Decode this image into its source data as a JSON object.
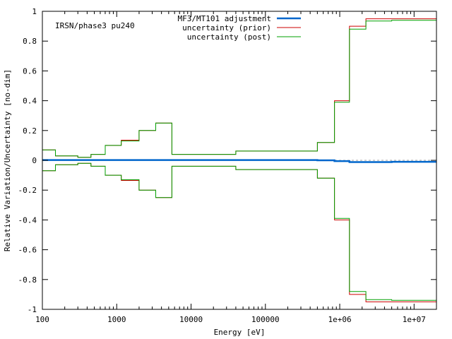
{
  "chart_data": {
    "type": "line",
    "title": "",
    "annotation": "IRSN/phase3 pu240",
    "xlabel": "Energy [eV]",
    "ylabel": "Relative Variation/Uncertainty [no-dim]",
    "xscale": "log",
    "xlim": [
      100,
      20000000
    ],
    "ylim": [
      -1,
      1
    ],
    "x_ticks": [
      {
        "value": 100,
        "label": "100"
      },
      {
        "value": 1000,
        "label": "1000"
      },
      {
        "value": 10000,
        "label": "10000"
      },
      {
        "value": 100000,
        "label": "100000"
      },
      {
        "value": 1000000,
        "label": "1e+06"
      },
      {
        "value": 10000000,
        "label": "1e+07"
      }
    ],
    "y_ticks": [
      {
        "value": 1,
        "label": "1"
      },
      {
        "value": 0.8,
        "label": "0.8"
      },
      {
        "value": 0.6,
        "label": "0.6"
      },
      {
        "value": 0.4,
        "label": "0.4"
      },
      {
        "value": 0.2,
        "label": "0.2"
      },
      {
        "value": 0,
        "label": "0"
      },
      {
        "value": -0.2,
        "label": "-0.2"
      },
      {
        "value": -0.4,
        "label": "-0.4"
      },
      {
        "value": -0.6,
        "label": "-0.6"
      },
      {
        "value": -0.8,
        "label": "-0.8"
      },
      {
        "value": -1,
        "label": "-1"
      }
    ],
    "zero_line": {
      "style": "dashed",
      "color": "#a0a0a0"
    },
    "legend_position": "top-right",
    "bin_edges": [
      100,
      150,
      300,
      450,
      700,
      1150,
      2000,
      3350,
      5530,
      40000,
      500000,
      850000,
      1350000,
      2250000,
      5000000,
      20000000
    ],
    "series": [
      {
        "name": "MF3/MT101 adjustment",
        "color": "#0066cc",
        "stroke_width": 2.5,
        "mirror": false,
        "values": [
          0.002,
          0.002,
          0.002,
          0.002,
          0.002,
          0.002,
          0.002,
          0.002,
          0.002,
          0.002,
          0.0,
          -0.005,
          -0.012,
          -0.012,
          -0.01
        ]
      },
      {
        "name": "uncertainty (prior)",
        "color": "#cc0000",
        "stroke_width": 1,
        "mirror": true,
        "values": [
          0.07,
          0.03,
          0.02,
          0.04,
          0.1,
          0.135,
          0.2,
          0.25,
          0.04,
          0.062,
          0.12,
          0.4,
          0.9,
          0.95,
          0.95
        ]
      },
      {
        "name": "uncertainty (post)",
        "color": "#00a000",
        "stroke_width": 1,
        "mirror": true,
        "values": [
          0.07,
          0.03,
          0.02,
          0.04,
          0.1,
          0.13,
          0.2,
          0.25,
          0.04,
          0.062,
          0.12,
          0.39,
          0.88,
          0.935,
          0.94
        ]
      }
    ]
  }
}
